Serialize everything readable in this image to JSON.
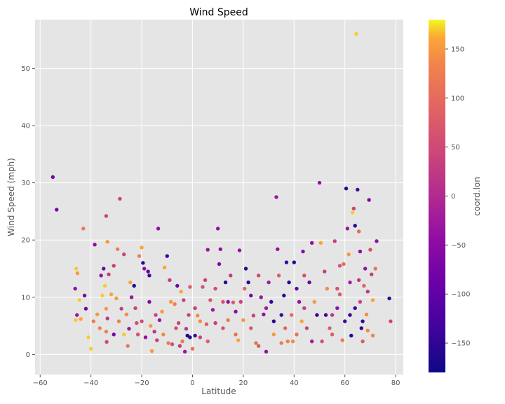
{
  "chart_data": {
    "type": "scatter",
    "title": "Wind Speed",
    "xlabel": "Latitude",
    "ylabel": "Wind Speed (mph)",
    "xlim": [
      -62,
      83
    ],
    "ylim": [
      -3.5,
      58.5
    ],
    "xticks": [
      -60,
      -40,
      -20,
      0,
      20,
      40,
      60,
      80
    ],
    "yticks": [
      0,
      10,
      20,
      30,
      40,
      50
    ],
    "grid": true,
    "colorbar": {
      "label": "coord.lon",
      "range": [
        -180,
        180
      ],
      "ticks": [
        150,
        100,
        50,
        0,
        -50,
        -100,
        -150
      ],
      "colormap": "plasma"
    },
    "points": [
      [
        -55,
        31,
        -70
      ],
      [
        -53.5,
        25.3,
        -70
      ],
      [
        -46.2,
        11.5,
        -40
      ],
      [
        -45.8,
        15,
        170
      ],
      [
        -45.3,
        14.2,
        150
      ],
      [
        -45.5,
        6.9,
        -30
      ],
      [
        -46,
        6,
        170
      ],
      [
        -44.5,
        9.5,
        170
      ],
      [
        -43,
        22,
        120
      ],
      [
        -42,
        8,
        -80
      ],
      [
        -41,
        3,
        170
      ],
      [
        -40,
        1,
        170
      ],
      [
        -38.5,
        19.2,
        -50
      ],
      [
        -37.5,
        7,
        150
      ],
      [
        -36,
        13.8,
        -40
      ],
      [
        -35,
        15,
        -80
      ],
      [
        -34.5,
        12,
        170
      ],
      [
        -34,
        24.2,
        40
      ],
      [
        -33.5,
        19.7,
        150
      ],
      [
        -33,
        14,
        30
      ],
      [
        -34,
        8,
        150
      ],
      [
        -33.5,
        6.3,
        20
      ],
      [
        -34,
        4,
        130
      ],
      [
        -33.8,
        2.2,
        50
      ],
      [
        -32,
        10.5,
        160
      ],
      [
        -31,
        15.5,
        30
      ],
      [
        -30,
        9.8,
        150
      ],
      [
        -29.5,
        18.4,
        130
      ],
      [
        -28.6,
        27.2,
        40
      ],
      [
        -28,
        8,
        30
      ],
      [
        -27,
        17.5,
        40
      ],
      [
        -26,
        7,
        140
      ],
      [
        -25.5,
        1.5,
        120
      ],
      [
        -25,
        4.5,
        -30
      ],
      [
        -24,
        10,
        -30
      ],
      [
        -23,
        12,
        -160
      ],
      [
        -22,
        5.5,
        50
      ],
      [
        -21.5,
        3.5,
        60
      ],
      [
        -21,
        17.2,
        130
      ],
      [
        -20,
        18.7,
        160
      ],
      [
        -19.5,
        16,
        -150
      ],
      [
        -19,
        15,
        -40
      ],
      [
        -18.5,
        3,
        -40
      ],
      [
        -17.5,
        14.5,
        -100
      ],
      [
        -17,
        13.8,
        -120
      ],
      [
        -16.5,
        5,
        150
      ],
      [
        -16,
        0.6,
        150
      ],
      [
        -15,
        4,
        20
      ],
      [
        -14,
        2.5,
        30
      ],
      [
        -13.5,
        22,
        -40
      ],
      [
        -13,
        6,
        -30
      ],
      [
        -12,
        7.5,
        150
      ],
      [
        -11,
        15.2,
        160
      ],
      [
        -10,
        17.2,
        -140
      ],
      [
        -9.5,
        2,
        120
      ],
      [
        -9,
        13,
        30
      ],
      [
        -8,
        1.8,
        60
      ],
      [
        -7,
        8.8,
        130
      ],
      [
        -6,
        12,
        -80
      ],
      [
        -5.5,
        5.5,
        40
      ],
      [
        -5,
        1.5,
        30
      ],
      [
        -4.5,
        11,
        160
      ],
      [
        -3.5,
        9.5,
        40
      ],
      [
        -3,
        0.5,
        -30
      ],
      [
        -2.5,
        4.5,
        20
      ],
      [
        -2,
        3.3,
        -170
      ],
      [
        -1,
        3,
        -160
      ],
      [
        -1,
        11.8,
        80
      ],
      [
        0,
        1,
        110
      ],
      [
        1,
        3.3,
        -140
      ],
      [
        2,
        6.8,
        140
      ],
      [
        3,
        3,
        40
      ],
      [
        4,
        11.8,
        60
      ],
      [
        5,
        13,
        40
      ],
      [
        5.5,
        5.3,
        80
      ],
      [
        6,
        18.3,
        -30
      ],
      [
        7,
        9.5,
        70
      ],
      [
        8,
        7.8,
        -30
      ],
      [
        9,
        5.5,
        30
      ],
      [
        10,
        22,
        -40
      ],
      [
        10.5,
        15.8,
        -60
      ],
      [
        11,
        18.4,
        -40
      ],
      [
        12,
        9.2,
        60
      ],
      [
        13,
        12.6,
        -160
      ],
      [
        14,
        6,
        120
      ],
      [
        15,
        13.8,
        30
      ],
      [
        16,
        9.1,
        70
      ],
      [
        17,
        7.5,
        -50
      ],
      [
        18,
        2.5,
        160
      ],
      [
        18.5,
        18.2,
        -40
      ],
      [
        19,
        9.2,
        40
      ],
      [
        20,
        6,
        150
      ],
      [
        21,
        15,
        -150
      ],
      [
        22,
        12.6,
        -160
      ],
      [
        23,
        10.3,
        -80
      ],
      [
        24,
        6.8,
        40
      ],
      [
        25,
        2,
        110
      ],
      [
        26,
        13.8,
        50
      ],
      [
        27,
        10,
        -30
      ],
      [
        28,
        7,
        -40
      ],
      [
        29,
        0.5,
        -40
      ],
      [
        30,
        12.6,
        -20
      ],
      [
        31,
        9.2,
        -140
      ],
      [
        32,
        5.8,
        -160
      ],
      [
        33,
        27.5,
        -30
      ],
      [
        33.5,
        18.4,
        -40
      ],
      [
        34,
        13.8,
        80
      ],
      [
        35,
        2,
        120
      ],
      [
        36,
        10.3,
        -150
      ],
      [
        36.5,
        4.6,
        90
      ],
      [
        37,
        16.1,
        -140
      ],
      [
        38,
        12.6,
        -160
      ],
      [
        39,
        6.9,
        100
      ],
      [
        39.5,
        2.3,
        140
      ],
      [
        40,
        16.1,
        -160
      ],
      [
        41,
        11.5,
        -110
      ],
      [
        42,
        9.2,
        -40
      ],
      [
        43,
        5.8,
        160
      ],
      [
        43.5,
        18,
        -50
      ],
      [
        44,
        13.8,
        60
      ],
      [
        45,
        4.6,
        40
      ],
      [
        46,
        12.6,
        -90
      ],
      [
        47,
        19.5,
        -40
      ],
      [
        48,
        9.2,
        150
      ],
      [
        49,
        6.9,
        -150
      ],
      [
        50,
        30,
        -40
      ],
      [
        50.5,
        19.5,
        160
      ],
      [
        51,
        2.3,
        60
      ],
      [
        52,
        14.5,
        30
      ],
      [
        53,
        11.5,
        140
      ],
      [
        54,
        4.6,
        80
      ],
      [
        55,
        6.9,
        20
      ],
      [
        56,
        19.8,
        40
      ],
      [
        57,
        8.1,
        -40
      ],
      [
        58,
        15.5,
        70
      ],
      [
        59,
        2.5,
        120
      ],
      [
        60,
        5.8,
        -140
      ],
      [
        60.5,
        29,
        -150
      ],
      [
        61,
        22,
        -30
      ],
      [
        61.5,
        17.5,
        150
      ],
      [
        62,
        12.6,
        -20
      ],
      [
        62.5,
        3.3,
        -160
      ],
      [
        63,
        24.8,
        170
      ],
      [
        63.5,
        25.5,
        40
      ],
      [
        64,
        22.5,
        -160
      ],
      [
        64.5,
        56,
        170
      ],
      [
        65,
        28.8,
        -130
      ],
      [
        65.5,
        13,
        20
      ],
      [
        66,
        9.2,
        40
      ],
      [
        66.5,
        4.6,
        -160
      ],
      [
        67,
        2.3,
        80
      ],
      [
        67.5,
        12,
        90
      ],
      [
        68,
        15,
        -40
      ],
      [
        68.5,
        7,
        140
      ],
      [
        69,
        11,
        20
      ],
      [
        69.5,
        27,
        -60
      ],
      [
        70,
        18.3,
        60
      ],
      [
        70.5,
        14,
        30
      ],
      [
        71,
        3.3,
        130
      ],
      [
        72,
        15,
        110
      ],
      [
        72.5,
        19.8,
        -40
      ],
      [
        77.5,
        9.8,
        -150
      ],
      [
        78,
        5.8,
        40
      ],
      [
        58,
        10.5,
        80
      ],
      [
        59.5,
        15.8,
        100
      ],
      [
        47,
        2.3,
        -20
      ],
      [
        44,
        8.1,
        30
      ],
      [
        41,
        3.5,
        110
      ],
      [
        37.5,
        2.3,
        130
      ],
      [
        35,
        6.9,
        -140
      ],
      [
        32,
        3.5,
        150
      ],
      [
        29,
        8.1,
        -30
      ],
      [
        26,
        1.5,
        80
      ],
      [
        23,
        4.6,
        70
      ],
      [
        20.5,
        11.5,
        90
      ],
      [
        17,
        3.5,
        110
      ],
      [
        14,
        9.2,
        -40
      ],
      [
        12,
        4.6,
        60
      ],
      [
        9,
        11.5,
        50
      ],
      [
        6,
        2.3,
        80
      ],
      [
        3,
        5.8,
        140
      ],
      [
        1,
        8.1,
        30
      ],
      [
        -1.5,
        6.9,
        40
      ],
      [
        -4,
        2.3,
        120
      ],
      [
        -6.5,
        4.6,
        60
      ],
      [
        -8.5,
        9.2,
        150
      ],
      [
        -11.5,
        3.5,
        140
      ],
      [
        -14.5,
        6.9,
        40
      ],
      [
        -17,
        9.2,
        -60
      ],
      [
        -20,
        5.8,
        50
      ],
      [
        -22.5,
        8.1,
        40
      ],
      [
        -24.5,
        12.6,
        160
      ],
      [
        -27,
        3.5,
        170
      ],
      [
        -29,
        5.8,
        130
      ],
      [
        -31,
        3.5,
        -70
      ],
      [
        -35.5,
        10.3,
        170
      ],
      [
        -36.5,
        4.6,
        130
      ],
      [
        -39,
        5.8,
        120
      ],
      [
        -42.5,
        10.3,
        -70
      ],
      [
        -44,
        6.2,
        160
      ],
      [
        52.5,
        6.9,
        -140
      ],
      [
        55,
        3.5,
        80
      ],
      [
        57,
        11.5,
        60
      ],
      [
        62,
        6.9,
        -150
      ],
      [
        64,
        8.1,
        -140
      ],
      [
        66,
        18,
        -50
      ],
      [
        67,
        5.8,
        -150
      ],
      [
        69,
        4.2,
        140
      ],
      [
        71,
        9.5,
        160
      ],
      [
        65.5,
        21.5,
        100
      ]
    ]
  }
}
